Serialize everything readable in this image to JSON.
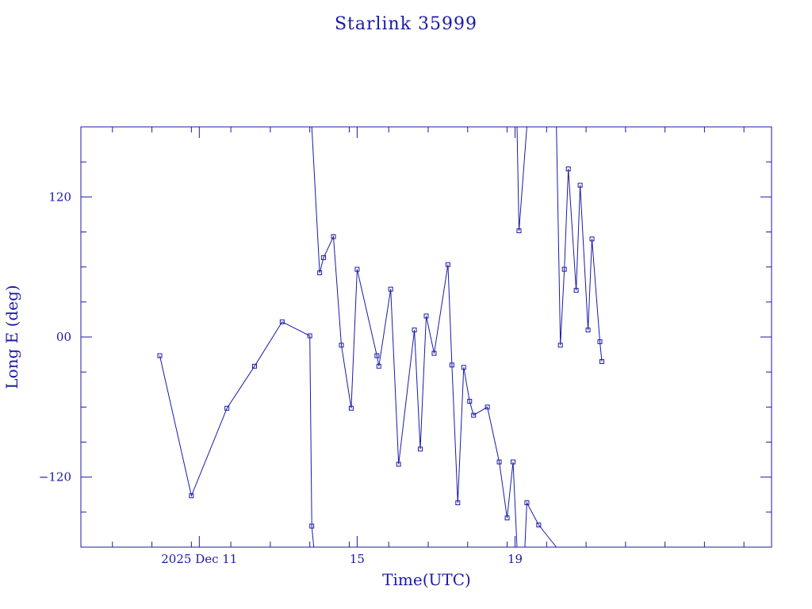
{
  "chart_data": {
    "type": "line",
    "title": "Starlink 35999",
    "xlabel": "Time(UTC)",
    "ylabel": "Long E (deg)",
    "x_unit": "day of month, December 2025 (UTC)",
    "xlim": [
      8,
      25.5
    ],
    "ylim": [
      -180,
      180
    ],
    "grid": false,
    "x_ticks": [
      {
        "value": 11,
        "label": "2025 Dec 11"
      },
      {
        "value": 15,
        "label": "15"
      },
      {
        "value": 19,
        "label": "19"
      }
    ],
    "x_minor_ticks": [
      8.8,
      9.8,
      10.8,
      11.8,
      12.8,
      13.8,
      14.8,
      15.8,
      16.8,
      17.8,
      18.8,
      19.8,
      20.8,
      21.8,
      22.8,
      23.8,
      24.8
    ],
    "y_ticks": [
      {
        "value": -120,
        "label": "−120"
      },
      {
        "value": 0,
        "label": "00"
      },
      {
        "value": 120,
        "label": "120"
      }
    ],
    "y_minor_ticks": [
      -150,
      -90,
      -60,
      -30,
      30,
      60,
      90,
      150
    ],
    "series": [
      {
        "segments": [
          [
            {
              "x": 10.0,
              "y": -16
            },
            {
              "x": 10.8,
              "y": -136
            },
            {
              "x": 11.7,
              "y": -61
            },
            {
              "x": 12.4,
              "y": -25
            },
            {
              "x": 13.1,
              "y": 13
            },
            {
              "x": 13.8,
              "y": 1
            },
            {
              "x": 13.85,
              "y": -162
            },
            {
              "x": 13.9,
              "y": -180
            }
          ],
          [
            {
              "x": 13.85,
              "y": 180
            },
            {
              "x": 14.05,
              "y": 55
            },
            {
              "x": 14.15,
              "y": 68
            },
            {
              "x": 14.4,
              "y": 86
            },
            {
              "x": 14.6,
              "y": -7
            },
            {
              "x": 14.85,
              "y": -61
            },
            {
              "x": 15.0,
              "y": 58
            },
            {
              "x": 15.5,
              "y": -16
            },
            {
              "x": 15.55,
              "y": -25
            },
            {
              "x": 15.85,
              "y": 41
            },
            {
              "x": 16.05,
              "y": -109
            },
            {
              "x": 16.45,
              "y": 6
            },
            {
              "x": 16.6,
              "y": -96
            },
            {
              "x": 16.75,
              "y": 18
            },
            {
              "x": 16.95,
              "y": -14
            },
            {
              "x": 17.3,
              "y": 62
            },
            {
              "x": 17.4,
              "y": -24
            },
            {
              "x": 17.55,
              "y": -142
            },
            {
              "x": 17.7,
              "y": -26
            },
            {
              "x": 17.85,
              "y": -55
            },
            {
              "x": 17.95,
              "y": -67
            },
            {
              "x": 18.3,
              "y": -60
            },
            {
              "x": 18.6,
              "y": -107
            },
            {
              "x": 18.8,
              "y": -155
            },
            {
              "x": 18.95,
              "y": -107
            },
            {
              "x": 19.05,
              "y": -180
            }
          ],
          [
            {
              "x": 19.05,
              "y": 180
            },
            {
              "x": 19.1,
              "y": 91
            },
            {
              "x": 19.3,
              "y": 180
            }
          ],
          [
            {
              "x": 19.25,
              "y": -180
            },
            {
              "x": 19.3,
              "y": -142
            },
            {
              "x": 19.6,
              "y": -161
            },
            {
              "x": 20.05,
              "y": -180
            }
          ],
          [
            {
              "x": 20.05,
              "y": 180
            },
            {
              "x": 20.15,
              "y": -7
            },
            {
              "x": 20.25,
              "y": 58
            },
            {
              "x": 20.35,
              "y": 144
            },
            {
              "x": 20.55,
              "y": 40
            },
            {
              "x": 20.65,
              "y": 130
            },
            {
              "x": 20.85,
              "y": 6
            },
            {
              "x": 20.95,
              "y": 84
            },
            {
              "x": 21.15,
              "y": -4
            },
            {
              "x": 21.2,
              "y": -21
            }
          ]
        ]
      }
    ]
  }
}
